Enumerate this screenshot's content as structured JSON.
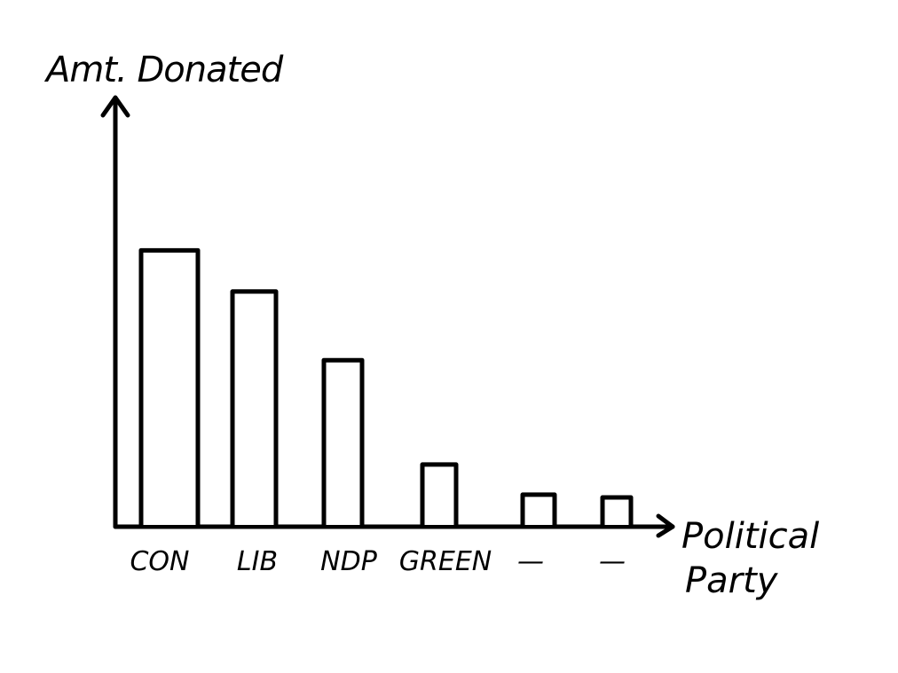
{
  "chart_data": {
    "type": "bar",
    "title": "",
    "ylabel": "Amt. Donated",
    "xlabel_lines": [
      "Political",
      "Party"
    ],
    "categories": [
      "CON",
      "LIB",
      "NDP",
      "GREEN",
      "—",
      "—"
    ],
    "values": [
      100,
      85,
      60,
      22,
      11,
      10
    ],
    "ylim": [
      0,
      155
    ],
    "grid": false,
    "legend": "none",
    "colors": {
      "stroke": "#000000",
      "fill": "#ffffff",
      "background": "#ffffff"
    }
  }
}
